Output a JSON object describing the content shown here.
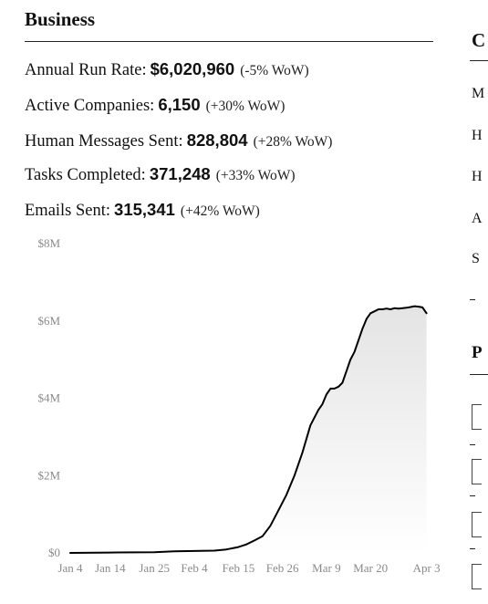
{
  "section": {
    "title": "Business"
  },
  "metrics": [
    {
      "label": "Annual Run Rate:",
      "value": "$6,020,960",
      "change": "(-5% WoW)"
    },
    {
      "label": "Active Companies:",
      "value": "6,150",
      "change": "(+30% WoW)"
    },
    {
      "label": "Human Messages Sent:",
      "value": "828,804",
      "change": "(+28% WoW)"
    },
    {
      "label": "Tasks Completed:",
      "value": "371,248",
      "change": "(+33% WoW)"
    },
    {
      "label": "Emails Sent:",
      "value": "315,341",
      "change": "(+42% WoW)"
    }
  ],
  "chart_data": {
    "type": "area",
    "title": "",
    "xlabel": "",
    "ylabel": "",
    "y_unit": "USD millions",
    "ylim": [
      0,
      8
    ],
    "y_ticks": [
      0,
      2,
      4,
      6,
      8
    ],
    "y_tick_labels": [
      "$0",
      "$2M",
      "$4M",
      "$6M",
      "$8M"
    ],
    "x_tick_labels": [
      "Jan 4",
      "Jan 14",
      "Jan 25",
      "Feb 4",
      "Feb 15",
      "Feb 26",
      "Mar 9",
      "Mar 20",
      "Apr 3"
    ],
    "x_tick_days": [
      0,
      10,
      21,
      31,
      42,
      53,
      64,
      75,
      89
    ],
    "x_range_days": [
      0,
      90
    ],
    "grid": false,
    "legend": "none",
    "series": [
      {
        "name": "",
        "points": [
          [
            0,
            0.0
          ],
          [
            10,
            0.01
          ],
          [
            21,
            0.02
          ],
          [
            26,
            0.04
          ],
          [
            31,
            0.05
          ],
          [
            36,
            0.06
          ],
          [
            39,
            0.09
          ],
          [
            42,
            0.15
          ],
          [
            44,
            0.22
          ],
          [
            46,
            0.32
          ],
          [
            48,
            0.43
          ],
          [
            50,
            0.7
          ],
          [
            52,
            1.1
          ],
          [
            54,
            1.5
          ],
          [
            56,
            2.0
          ],
          [
            58,
            2.6
          ],
          [
            60,
            3.3
          ],
          [
            62,
            3.7
          ],
          [
            63,
            3.85
          ],
          [
            64,
            4.1
          ],
          [
            65,
            4.25
          ],
          [
            66,
            4.25
          ],
          [
            67,
            4.3
          ],
          [
            68,
            4.4
          ],
          [
            69,
            4.7
          ],
          [
            70,
            5.0
          ],
          [
            71,
            5.2
          ],
          [
            72,
            5.5
          ],
          [
            73,
            5.8
          ],
          [
            74,
            6.05
          ],
          [
            75,
            6.2
          ],
          [
            76,
            6.25
          ],
          [
            77,
            6.3
          ],
          [
            78,
            6.3
          ],
          [
            79,
            6.32
          ],
          [
            80,
            6.3
          ],
          [
            81,
            6.33
          ],
          [
            82,
            6.32
          ],
          [
            83,
            6.33
          ],
          [
            84,
            6.34
          ],
          [
            85,
            6.36
          ],
          [
            86,
            6.38
          ],
          [
            87,
            6.37
          ],
          [
            88,
            6.35
          ],
          [
            89,
            6.2
          ]
        ]
      }
    ],
    "line_color": "#000000",
    "fill_color_top": "#e4e4e4",
    "fill_color_bottom": "#ffffff"
  },
  "right_panel": {
    "title_fragment": "C",
    "letters": [
      "M",
      "H",
      "H",
      "A",
      "S"
    ],
    "second_title_fragment": "P"
  }
}
